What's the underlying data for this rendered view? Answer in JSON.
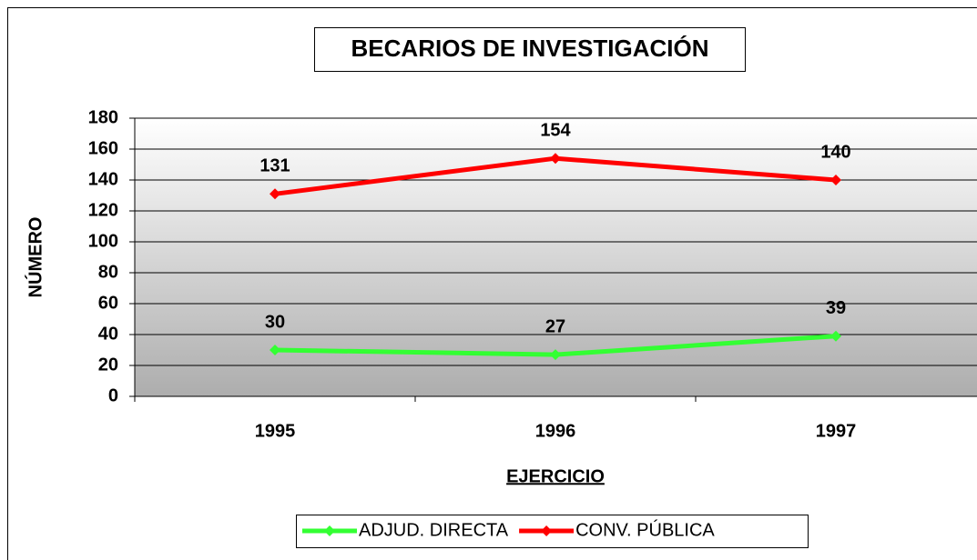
{
  "chart_data": {
    "type": "line",
    "title": "BECARIOS DE INVESTIGACIÓN",
    "xlabel": "EJERCICIO",
    "ylabel": "NÚMERO",
    "categories": [
      "1995",
      "1996",
      "1997"
    ],
    "series": [
      {
        "name": "ADJUD. DIRECTA",
        "color": "#33ff33",
        "values": [
          30,
          27,
          39
        ]
      },
      {
        "name": "CONV. PÚBLICA",
        "color": "#ff0000",
        "values": [
          131,
          154,
          140
        ]
      }
    ],
    "ylim": [
      0,
      180
    ],
    "yticks": [
      0,
      20,
      40,
      60,
      80,
      100,
      120,
      140,
      160,
      180
    ],
    "grid": true,
    "legend": "bottom"
  }
}
